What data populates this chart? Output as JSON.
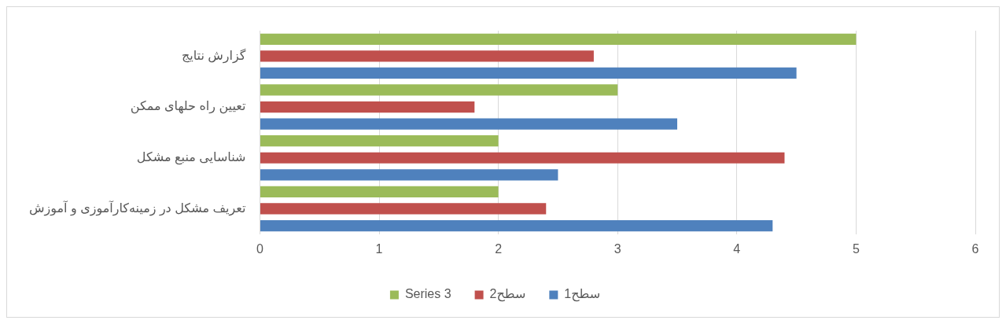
{
  "chart_data": {
    "type": "bar",
    "orientation": "horizontal",
    "categories": [
      "گزارش نتایج",
      "تعیین راه حلهای ممکن",
      "شناسایی منبع مشکل",
      "تعریف مشکل در زمینه‌کارآموزی و آموزش"
    ],
    "series": [
      {
        "name": "Series 3",
        "color": "#9bbb59",
        "values": [
          5,
          3,
          2,
          2
        ]
      },
      {
        "name": "سطح2",
        "color": "#c0504d",
        "values": [
          2.8,
          1.8,
          4.4,
          2.4
        ]
      },
      {
        "name": "سطح1",
        "color": "#4f81bd",
        "values": [
          4.5,
          3.5,
          2.5,
          4.3
        ]
      }
    ],
    "xlim": [
      0,
      6
    ],
    "xticks": [
      0,
      1,
      2,
      3,
      4,
      5,
      6
    ],
    "grid": "x",
    "legend": "bottom"
  }
}
